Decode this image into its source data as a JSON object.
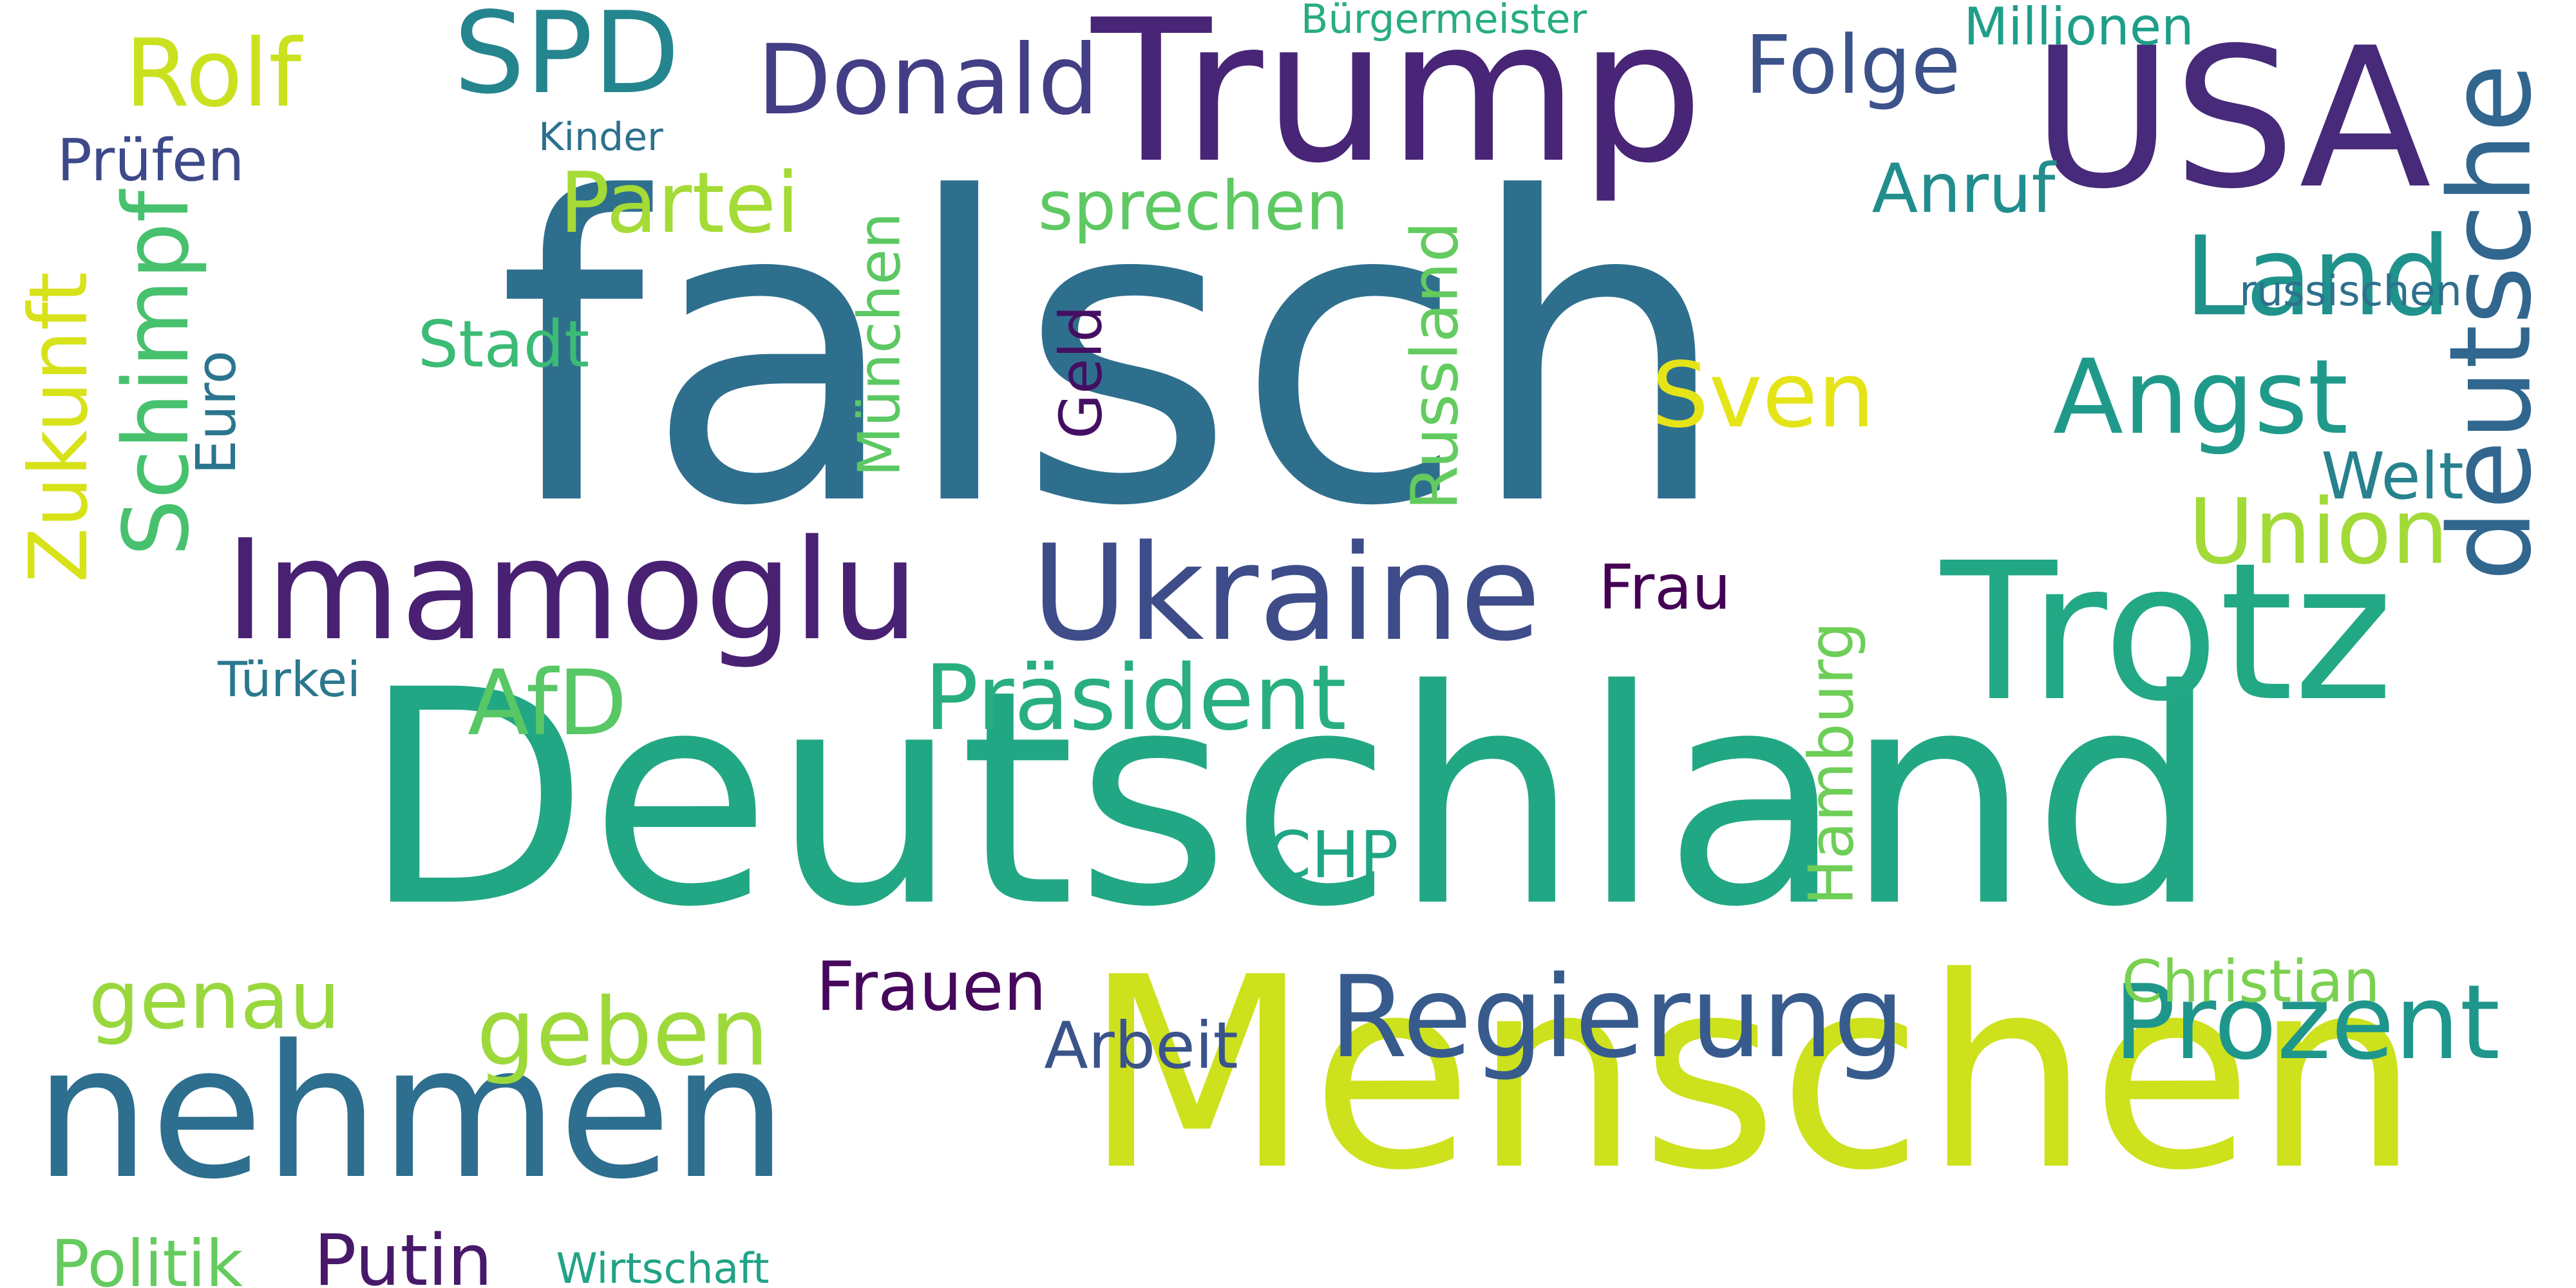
{
  "words": [
    {
      "text": "falsch",
      "color": "#2f6f8e"
    },
    {
      "text": "Deutschland",
      "color": "#22a784"
    },
    {
      "text": "Menschen",
      "color": "#cde11d"
    },
    {
      "text": "Trump",
      "color": "#482576"
    },
    {
      "text": "USA",
      "color": "#472a7a"
    },
    {
      "text": "nehmen",
      "color": "#2e6e8e"
    },
    {
      "text": "Trotz",
      "color": "#22a884"
    },
    {
      "text": "Imamoglu",
      "color": "#482173"
    },
    {
      "text": "Ukraine",
      "color": "#3e4c8a"
    },
    {
      "text": "deutsche",
      "color": "#31668e"
    },
    {
      "text": "Regierung",
      "color": "#375b8d"
    },
    {
      "text": "SPD",
      "color": "#25858e"
    },
    {
      "text": "Donald",
      "color": "#433e85"
    },
    {
      "text": "Land",
      "color": "#20928c"
    },
    {
      "text": "Angst",
      "color": "#1f9a8a"
    },
    {
      "text": "Prozent",
      "color": "#1f968b"
    },
    {
      "text": "Rolf",
      "color": "#cae11f"
    },
    {
      "text": "Präsident",
      "color": "#29af7f"
    },
    {
      "text": "geben",
      "color": "#9dd93b"
    },
    {
      "text": "Schimpf",
      "color": "#48c16e"
    },
    {
      "text": "Union",
      "color": "#a2da37"
    },
    {
      "text": "Partei",
      "color": "#a5db36"
    },
    {
      "text": "Folge",
      "color": "#3b528b"
    },
    {
      "text": "Sven",
      "color": "#e5e419"
    },
    {
      "text": "AfD",
      "color": "#58c765"
    },
    {
      "text": "Zukunft",
      "color": "#d8e219"
    },
    {
      "text": "genau",
      "color": "#99d83d"
    },
    {
      "text": "sprechen",
      "color": "#5ec962"
    },
    {
      "text": "Anruf",
      "color": "#228d8d"
    },
    {
      "text": "Russland",
      "color": "#63cb5f"
    },
    {
      "text": "Frauen",
      "color": "#46085c"
    },
    {
      "text": "Arbeit",
      "color": "#3a538b"
    },
    {
      "text": "Putin",
      "color": "#48186a"
    },
    {
      "text": "Hamburg",
      "color": "#6ece58"
    },
    {
      "text": "Welt",
      "color": "#26828e"
    },
    {
      "text": "München",
      "color": "#5cc863"
    },
    {
      "text": "Geld",
      "color": "#440f62"
    },
    {
      "text": "Stadt",
      "color": "#3bbb75"
    },
    {
      "text": "CHP",
      "color": "#21a685"
    },
    {
      "text": "Politik",
      "color": "#65cb5e"
    },
    {
      "text": "Christian",
      "color": "#7ad151"
    },
    {
      "text": "Frau",
      "color": "#440154"
    },
    {
      "text": "Euro",
      "color": "#2b758e"
    },
    {
      "text": "Prüfen",
      "color": "#3e4989"
    },
    {
      "text": "Millionen",
      "color": "#1f9e89"
    },
    {
      "text": "Türkei",
      "color": "#2a788e"
    },
    {
      "text": "russischen",
      "color": "#2d708e"
    },
    {
      "text": "Wirtschaft",
      "color": "#20a386"
    },
    {
      "text": "Bürgermeister",
      "color": "#27ad81"
    },
    {
      "text": "Kinder",
      "color": "#2c718e"
    }
  ]
}
